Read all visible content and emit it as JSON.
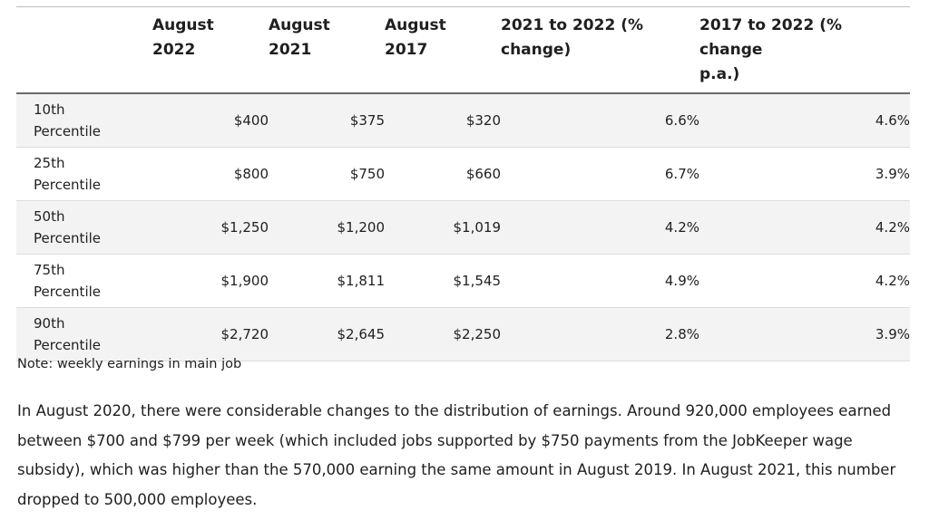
{
  "table": {
    "headers": [
      "",
      "August\n2022",
      "August\n2021",
      "August\n2017",
      "2021 to 2022 (%\nchange)",
      "2017 to 2022 (% change\np.a.)"
    ],
    "rows": [
      [
        "10th\nPercentile",
        "$400",
        "$375",
        "$320",
        "6.6%",
        "4.6%"
      ],
      [
        "25th\nPercentile",
        "$800",
        "$750",
        "$660",
        "6.7%",
        "3.9%"
      ],
      [
        "50th\nPercentile",
        "$1,250",
        "$1,200",
        "$1,019",
        "4.2%",
        "4.2%"
      ],
      [
        "75th\nPercentile",
        "$1,900",
        "$1,811",
        "$1,545",
        "4.9%",
        "4.2%"
      ],
      [
        "90th\nPercentile",
        "$2,720",
        "$2,645",
        "$2,250",
        "2.8%",
        "3.9%"
      ]
    ]
  },
  "note": "Note: weekly earnings in main job",
  "paragraph": "In August 2020, there were considerable changes to the distribution of earnings. Around 920,000 employees earned between $700 and $799 per week (which included jobs supported by $750 payments from the JobKeeper wage subsidy), which was higher than the 570,000 earning the same amount in August 2019. In August 2021, this number dropped to 500,000 employees."
}
